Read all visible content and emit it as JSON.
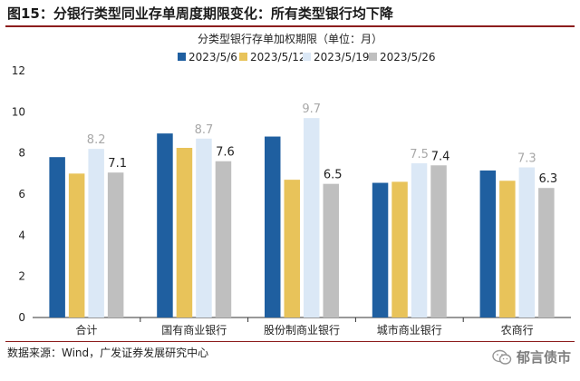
{
  "figure": {
    "title": "图15：分银行类型同业存单周度期限变化：所有类型银行均下降",
    "source": "数据来源：Wind，广发证券发展研究中心",
    "watermark": "郁言债市"
  },
  "chart_data": {
    "type": "bar",
    "title": "分类型银行存单加权期限（单位：月）",
    "xlabel": "",
    "ylabel": "",
    "ylim": [
      0,
      12
    ],
    "yticks": [
      0,
      2,
      4,
      6,
      8,
      10,
      12
    ],
    "grid": false,
    "legend_position": "top",
    "categories": [
      "合计",
      "国有商业银行",
      "股份制商业银行",
      "城市商业银行",
      "农商行"
    ],
    "series": [
      {
        "name": "2023/5/6",
        "color": "#1f5fa0",
        "values": [
          7.8,
          8.95,
          8.8,
          6.55,
          7.15
        ]
      },
      {
        "name": "2023/5/12",
        "color": "#e8c35a",
        "values": [
          7.0,
          8.25,
          6.7,
          6.6,
          6.65
        ]
      },
      {
        "name": "2023/5/19",
        "color": "#dbe8f6",
        "values": [
          8.2,
          8.7,
          9.7,
          7.5,
          7.3
        ]
      },
      {
        "name": "2023/5/26",
        "color": "#bfbfbf",
        "values": [
          7.05,
          7.6,
          6.5,
          7.4,
          6.3
        ]
      }
    ],
    "data_labels": [
      {
        "series": 2,
        "category": 0,
        "text": "8.2"
      },
      {
        "series": 3,
        "category": 0,
        "text": "7.1"
      },
      {
        "series": 2,
        "category": 1,
        "text": "8.7"
      },
      {
        "series": 3,
        "category": 1,
        "text": "7.6"
      },
      {
        "series": 2,
        "category": 2,
        "text": "9.7"
      },
      {
        "series": 3,
        "category": 2,
        "text": "6.5"
      },
      {
        "series": 2,
        "category": 3,
        "text": "7.5"
      },
      {
        "series": 3,
        "category": 3,
        "text": "7.4"
      },
      {
        "series": 2,
        "category": 4,
        "text": "7.3"
      },
      {
        "series": 3,
        "category": 4,
        "text": "6.3"
      }
    ],
    "label_colors": {
      "series_2": "#a8a8a8",
      "series_3": "#222222"
    }
  }
}
